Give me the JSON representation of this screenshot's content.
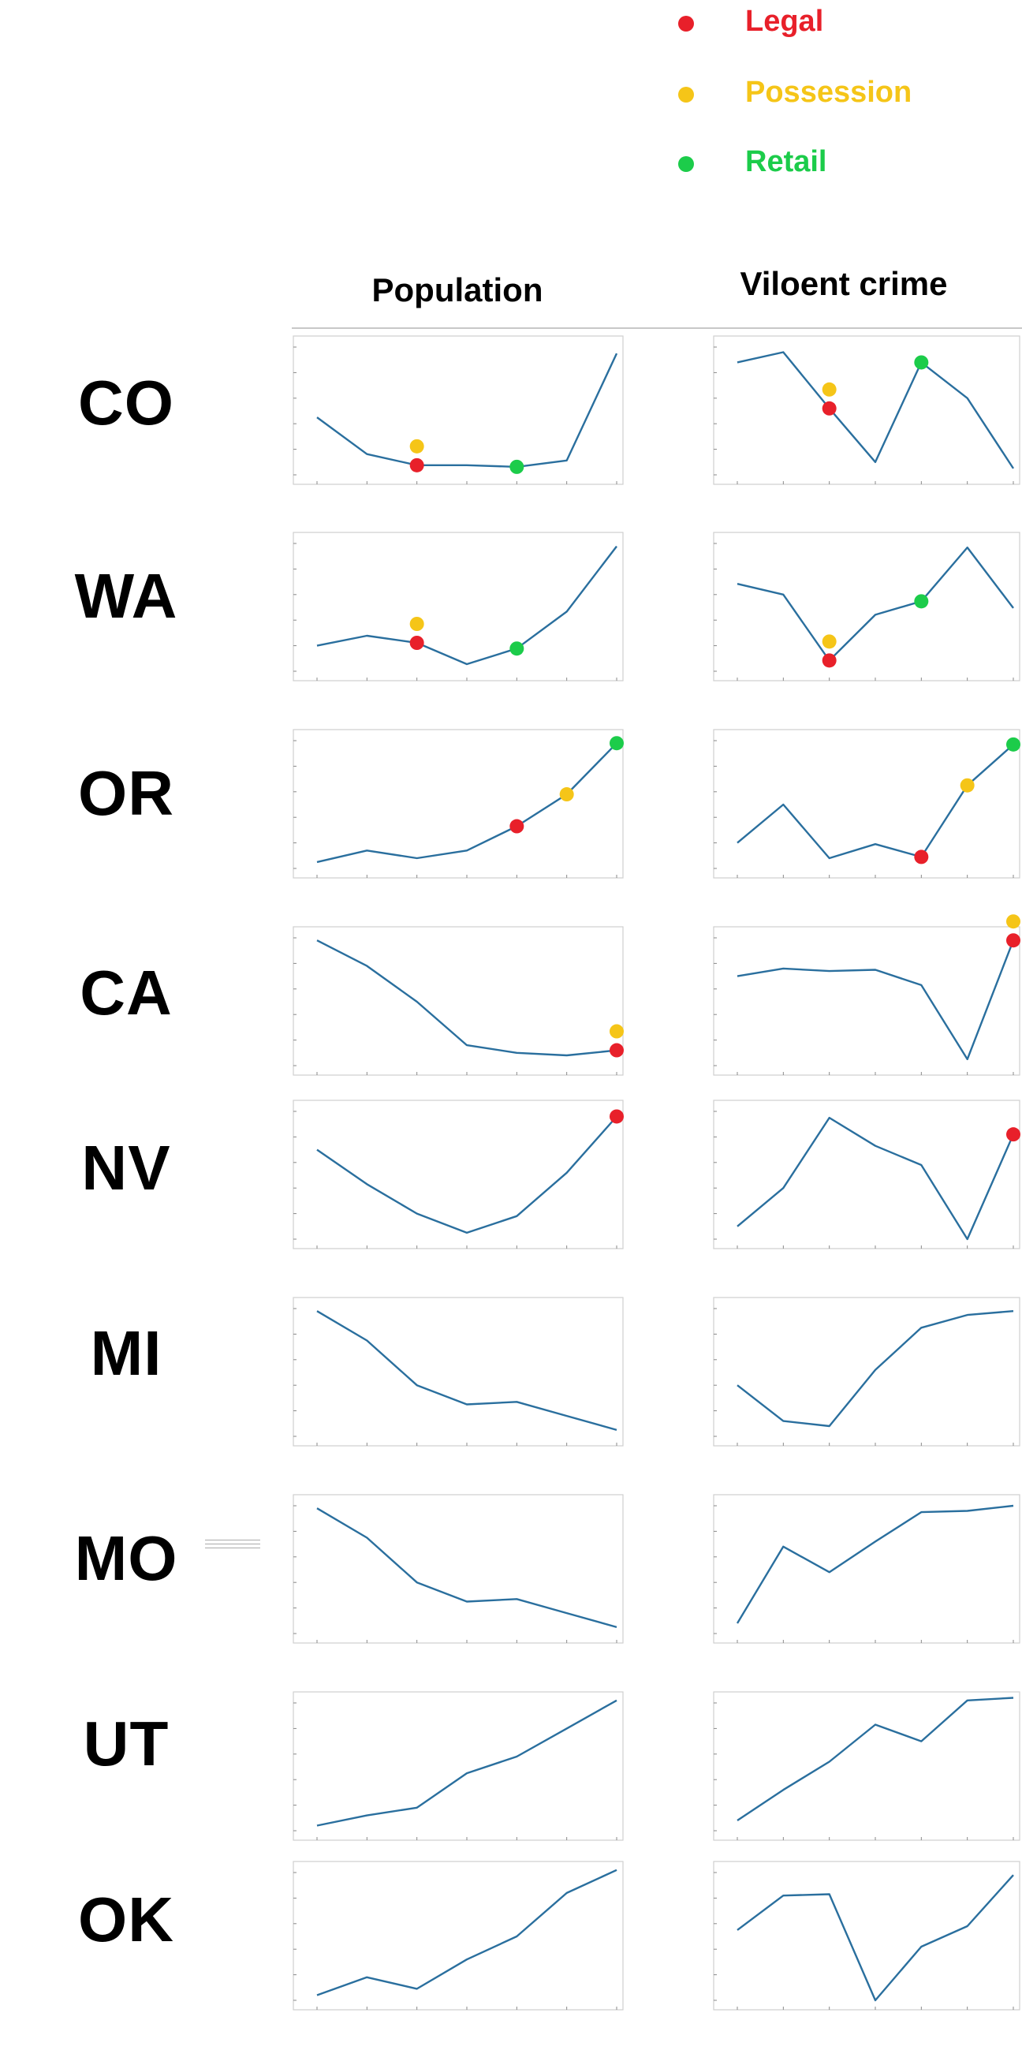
{
  "legend": {
    "items": [
      {
        "label": "Legal",
        "color": "#e8202a"
      },
      {
        "label": "Possession",
        "color": "#f5c518"
      },
      {
        "label": "Retail",
        "color": "#1ccc4a"
      }
    ]
  },
  "headers": {
    "population": "Population",
    "crime": "Viloent crime"
  },
  "colors": {
    "line": "#2a6f9e",
    "legal": "#e8202a",
    "possession": "#f5c518",
    "retail": "#1ccc4a"
  },
  "rows": [
    {
      "state": "CO",
      "population": {
        "values": [
          56,
          33,
          26,
          26,
          25,
          29,
          96
        ],
        "ylim": [
          20,
          100
        ],
        "markers": {
          "possession": 2,
          "legal": 2,
          "retail": 4
        }
      },
      "crime": {
        "values": [
          88,
          96,
          52,
          10,
          88,
          60,
          5
        ],
        "ylim": [
          0,
          100
        ],
        "markers": {
          "possession": 2,
          "legal": 2,
          "retail": 4
        }
      }
    },
    {
      "state": "WA",
      "population": {
        "values": [
          28,
          35,
          30,
          15,
          26,
          52,
          98
        ],
        "ylim": [
          10,
          100
        ],
        "markers": {
          "possession": 2,
          "legal": 2,
          "retail": 4
        }
      },
      "crime": {
        "values": [
          70,
          62,
          13,
          47,
          57,
          97,
          52
        ],
        "ylim": [
          5,
          100
        ],
        "markers": {
          "possession": 2,
          "legal": 2,
          "retail": 4
        }
      }
    },
    {
      "state": "OR",
      "population": {
        "values": [
          5,
          14,
          8,
          14,
          33,
          58,
          98
        ],
        "ylim": [
          0,
          100
        ],
        "markers": {
          "legal": 4,
          "possession": 5,
          "retail": 6
        }
      },
      "crime": {
        "values": [
          20,
          50,
          8,
          19,
          9,
          65,
          97
        ],
        "ylim": [
          0,
          100
        ],
        "markers": {
          "legal": 4,
          "possession": 5,
          "retail": 6
        }
      }
    },
    {
      "state": "CA",
      "population": {
        "values": [
          98,
          78,
          50,
          16,
          10,
          8,
          12
        ],
        "ylim": [
          0,
          100
        ],
        "markers": {
          "possession": 6,
          "legal": 6
        }
      },
      "crime": {
        "values": [
          70,
          76,
          74,
          75,
          63,
          5,
          98
        ],
        "ylim": [
          0,
          100
        ],
        "markers": {
          "possession": 6,
          "legal": 6
        }
      }
    },
    {
      "state": "NV",
      "population": {
        "values": [
          70,
          43,
          20,
          5,
          18,
          52,
          96
        ],
        "ylim": [
          0,
          100
        ],
        "markers": {
          "legal": 6
        }
      },
      "crime": {
        "values": [
          10,
          40,
          95,
          73,
          58,
          0,
          82
        ],
        "ylim": [
          0,
          100
        ],
        "markers": {
          "legal": 6
        }
      }
    },
    {
      "state": "MI",
      "population": {
        "values": [
          98,
          75,
          40,
          25,
          27,
          16,
          5
        ],
        "ylim": [
          0,
          100
        ],
        "markers": {}
      },
      "crime": {
        "values": [
          40,
          12,
          8,
          52,
          85,
          95,
          98
        ],
        "ylim": [
          0,
          100
        ],
        "markers": {}
      }
    },
    {
      "state": "MO",
      "population": {
        "values": [
          98,
          75,
          40,
          25,
          27,
          16,
          5
        ],
        "ylim": [
          0,
          100
        ],
        "markers": {}
      },
      "crime": {
        "values": [
          8,
          68,
          48,
          72,
          95,
          96,
          100
        ],
        "ylim": [
          0,
          100
        ],
        "markers": {}
      }
    },
    {
      "state": "UT",
      "population": {
        "values": [
          4,
          12,
          18,
          45,
          58,
          80,
          102
        ],
        "ylim": [
          0,
          100
        ],
        "markers": {}
      },
      "crime": {
        "values": [
          8,
          32,
          54,
          83,
          70,
          102,
          104
        ],
        "ylim": [
          0,
          100
        ],
        "markers": {}
      }
    },
    {
      "state": "OK",
      "population": {
        "values": [
          4,
          18,
          9,
          32,
          50,
          84,
          102
        ],
        "ylim": [
          0,
          100
        ],
        "markers": {}
      },
      "crime": {
        "values": [
          55,
          82,
          83,
          0,
          42,
          58,
          98
        ],
        "ylim": [
          0,
          100
        ],
        "markers": {}
      }
    }
  ],
  "chart_data": [
    {
      "type": "line",
      "title": "",
      "state": "CO",
      "metric": "Population",
      "x": [
        1,
        2,
        3,
        4,
        5,
        6,
        7
      ],
      "values": [
        56,
        33,
        26,
        26,
        25,
        29,
        96
      ]
    },
    {
      "type": "line",
      "title": "",
      "state": "CO",
      "metric": "Viloent crime",
      "x": [
        1,
        2,
        3,
        4,
        5,
        6,
        7
      ],
      "values": [
        88,
        96,
        52,
        10,
        88,
        60,
        5
      ]
    },
    {
      "type": "line",
      "title": "",
      "state": "WA",
      "metric": "Population",
      "x": [
        1,
        2,
        3,
        4,
        5,
        6,
        7
      ],
      "values": [
        28,
        35,
        30,
        15,
        26,
        52,
        98
      ]
    },
    {
      "type": "line",
      "title": "",
      "state": "WA",
      "metric": "Viloent crime",
      "x": [
        1,
        2,
        3,
        4,
        5,
        6,
        7
      ],
      "values": [
        70,
        62,
        13,
        47,
        57,
        97,
        52
      ]
    },
    {
      "type": "line",
      "title": "",
      "state": "OR",
      "metric": "Population",
      "x": [
        1,
        2,
        3,
        4,
        5,
        6,
        7
      ],
      "values": [
        5,
        14,
        8,
        14,
        33,
        58,
        98
      ]
    },
    {
      "type": "line",
      "title": "",
      "state": "OR",
      "metric": "Viloent crime",
      "x": [
        1,
        2,
        3,
        4,
        5,
        6,
        7
      ],
      "values": [
        20,
        50,
        8,
        19,
        9,
        65,
        97
      ]
    },
    {
      "type": "line",
      "title": "",
      "state": "CA",
      "metric": "Population",
      "x": [
        1,
        2,
        3,
        4,
        5,
        6,
        7
      ],
      "values": [
        98,
        78,
        50,
        16,
        10,
        8,
        12
      ]
    },
    {
      "type": "line",
      "title": "",
      "state": "CA",
      "metric": "Viloent crime",
      "x": [
        1,
        2,
        3,
        4,
        5,
        6,
        7
      ],
      "values": [
        70,
        76,
        74,
        75,
        63,
        5,
        98
      ]
    },
    {
      "type": "line",
      "title": "",
      "state": "NV",
      "metric": "Population",
      "x": [
        1,
        2,
        3,
        4,
        5,
        6,
        7
      ],
      "values": [
        70,
        43,
        20,
        5,
        18,
        52,
        96
      ]
    },
    {
      "type": "line",
      "title": "",
      "state": "NV",
      "metric": "Viloent crime",
      "x": [
        1,
        2,
        3,
        4,
        5,
        6,
        7
      ],
      "values": [
        10,
        40,
        95,
        73,
        58,
        0,
        82
      ]
    },
    {
      "type": "line",
      "title": "",
      "state": "MI",
      "metric": "Population",
      "x": [
        1,
        2,
        3,
        4,
        5,
        6,
        7
      ],
      "values": [
        98,
        75,
        40,
        25,
        27,
        16,
        5
      ]
    },
    {
      "type": "line",
      "title": "",
      "state": "MI",
      "metric": "Viloent crime",
      "x": [
        1,
        2,
        3,
        4,
        5,
        6,
        7
      ],
      "values": [
        40,
        12,
        8,
        52,
        85,
        95,
        98
      ]
    },
    {
      "type": "line",
      "title": "",
      "state": "MO",
      "metric": "Population",
      "x": [
        1,
        2,
        3,
        4,
        5,
        6,
        7
      ],
      "values": [
        98,
        75,
        40,
        25,
        27,
        16,
        5
      ]
    },
    {
      "type": "line",
      "title": "",
      "state": "MO",
      "metric": "Viloent crime",
      "x": [
        1,
        2,
        3,
        4,
        5,
        6,
        7
      ],
      "values": [
        8,
        68,
        48,
        72,
        95,
        96,
        100
      ]
    },
    {
      "type": "line",
      "title": "",
      "state": "UT",
      "metric": "Population",
      "x": [
        1,
        2,
        3,
        4,
        5,
        6,
        7
      ],
      "values": [
        4,
        12,
        18,
        45,
        58,
        80,
        102
      ]
    },
    {
      "type": "line",
      "title": "",
      "state": "UT",
      "metric": "Viloent crime",
      "x": [
        1,
        2,
        3,
        4,
        5,
        6,
        7
      ],
      "values": [
        8,
        32,
        54,
        83,
        70,
        102,
        104
      ]
    },
    {
      "type": "line",
      "title": "",
      "state": "OK",
      "metric": "Population",
      "x": [
        1,
        2,
        3,
        4,
        5,
        6,
        7
      ],
      "values": [
        4,
        18,
        9,
        32,
        50,
        84,
        102
      ]
    },
    {
      "type": "line",
      "title": "",
      "state": "OK",
      "metric": "Viloent crime",
      "x": [
        1,
        2,
        3,
        4,
        5,
        6,
        7
      ],
      "values": [
        55,
        82,
        83,
        0,
        42,
        58,
        98
      ]
    }
  ]
}
